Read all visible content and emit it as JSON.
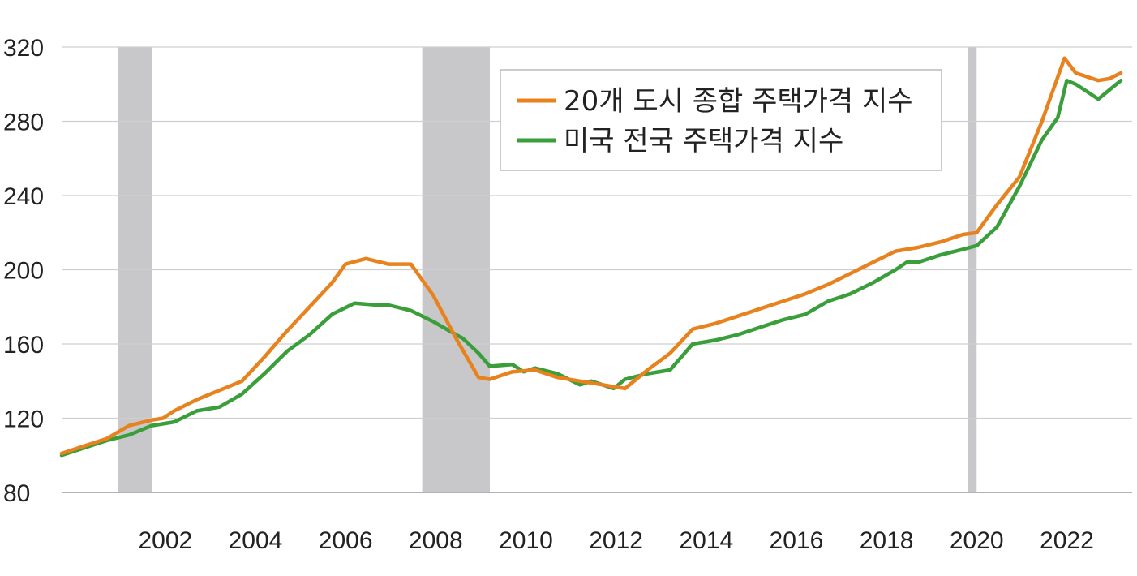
{
  "chart_data": {
    "type": "line",
    "title": "",
    "xlabel": "",
    "ylabel": "",
    "ylim": [
      80,
      320
    ],
    "yticks": [
      "80",
      "120",
      "160",
      "200",
      "240",
      "280",
      "320"
    ],
    "xlim": [
      2000.0,
      2023.75
    ],
    "xticks": [
      "2002",
      "2004",
      "2006",
      "2008",
      "2010",
      "2012",
      "2014",
      "2016",
      "2018",
      "2020",
      "2022"
    ],
    "grid": "horizontal",
    "legend_position": "top-right",
    "recessions": [
      {
        "start": 2001.25,
        "end": 2002.0
      },
      {
        "start": 2008.0,
        "end": 2009.5
      },
      {
        "start": 2020.1,
        "end": 2020.3
      }
    ],
    "series": [
      {
        "name": "20개 도시 종합 주택가격 지수",
        "color": "#e8821e",
        "x": [
          2000.0,
          2000.5,
          2001.0,
          2001.5,
          2002.0,
          2002.25,
          2002.5,
          2003.0,
          2003.5,
          2004.0,
          2004.5,
          2005.0,
          2005.5,
          2006.0,
          2006.3,
          2006.75,
          2007.25,
          2007.75,
          2008.25,
          2008.75,
          2009.25,
          2009.5,
          2010.0,
          2010.5,
          2011.0,
          2011.5,
          2012.0,
          2012.5,
          2013.0,
          2013.5,
          2014.0,
          2014.5,
          2015.0,
          2015.5,
          2016.0,
          2016.5,
          2017.0,
          2017.5,
          2018.0,
          2018.5,
          2019.0,
          2019.5,
          2020.0,
          2020.3,
          2020.75,
          2021.25,
          2021.75,
          2022.25,
          2022.5,
          2022.75,
          2023.0,
          2023.25,
          2023.5
        ],
        "values": [
          101,
          105,
          109,
          116,
          119,
          120,
          124,
          130,
          135,
          140,
          153,
          167,
          180,
          193,
          203,
          206,
          203,
          203,
          186,
          163,
          142,
          141,
          145,
          146,
          142,
          140,
          138,
          136,
          146,
          155,
          168,
          171,
          175,
          179,
          183,
          187,
          192,
          198,
          204,
          210,
          212,
          215,
          219,
          220,
          235,
          250,
          280,
          314,
          306,
          304,
          302,
          303,
          306
        ]
      },
      {
        "name": "미국 전국 주택가격 지수",
        "color": "#3a9e3a",
        "x": [
          2000.0,
          2000.5,
          2001.0,
          2001.5,
          2002.0,
          2002.25,
          2002.5,
          2003.0,
          2003.5,
          2004.0,
          2004.5,
          2005.0,
          2005.5,
          2006.0,
          2006.5,
          2007.0,
          2007.25,
          2007.75,
          2008.25,
          2008.75,
          2008.9,
          2009.25,
          2009.5,
          2010.0,
          2010.25,
          2010.5,
          2011.0,
          2011.5,
          2011.75,
          2012.0,
          2012.25,
          2012.5,
          2013.0,
          2013.5,
          2014.0,
          2014.5,
          2015.0,
          2015.5,
          2016.0,
          2016.5,
          2017.0,
          2017.5,
          2018.0,
          2018.5,
          2018.75,
          2019.0,
          2019.5,
          2020.0,
          2020.3,
          2020.75,
          2021.25,
          2021.75,
          2022.1,
          2022.3,
          2022.5,
          2022.75,
          2023.0,
          2023.25,
          2023.5
        ],
        "values": [
          100,
          104,
          108,
          111,
          116,
          117,
          118,
          124,
          126,
          133,
          144,
          156,
          165,
          176,
          182,
          181,
          181,
          178,
          172,
          165,
          163,
          155,
          148,
          149,
          145,
          147,
          144,
          138,
          140,
          138,
          136,
          141,
          144,
          146,
          160,
          162,
          165,
          169,
          173,
          176,
          183,
          187,
          193,
          200,
          204,
          204,
          208,
          211,
          213,
          223,
          245,
          270,
          282,
          302,
          300,
          296,
          292,
          297,
          302
        ]
      }
    ]
  }
}
